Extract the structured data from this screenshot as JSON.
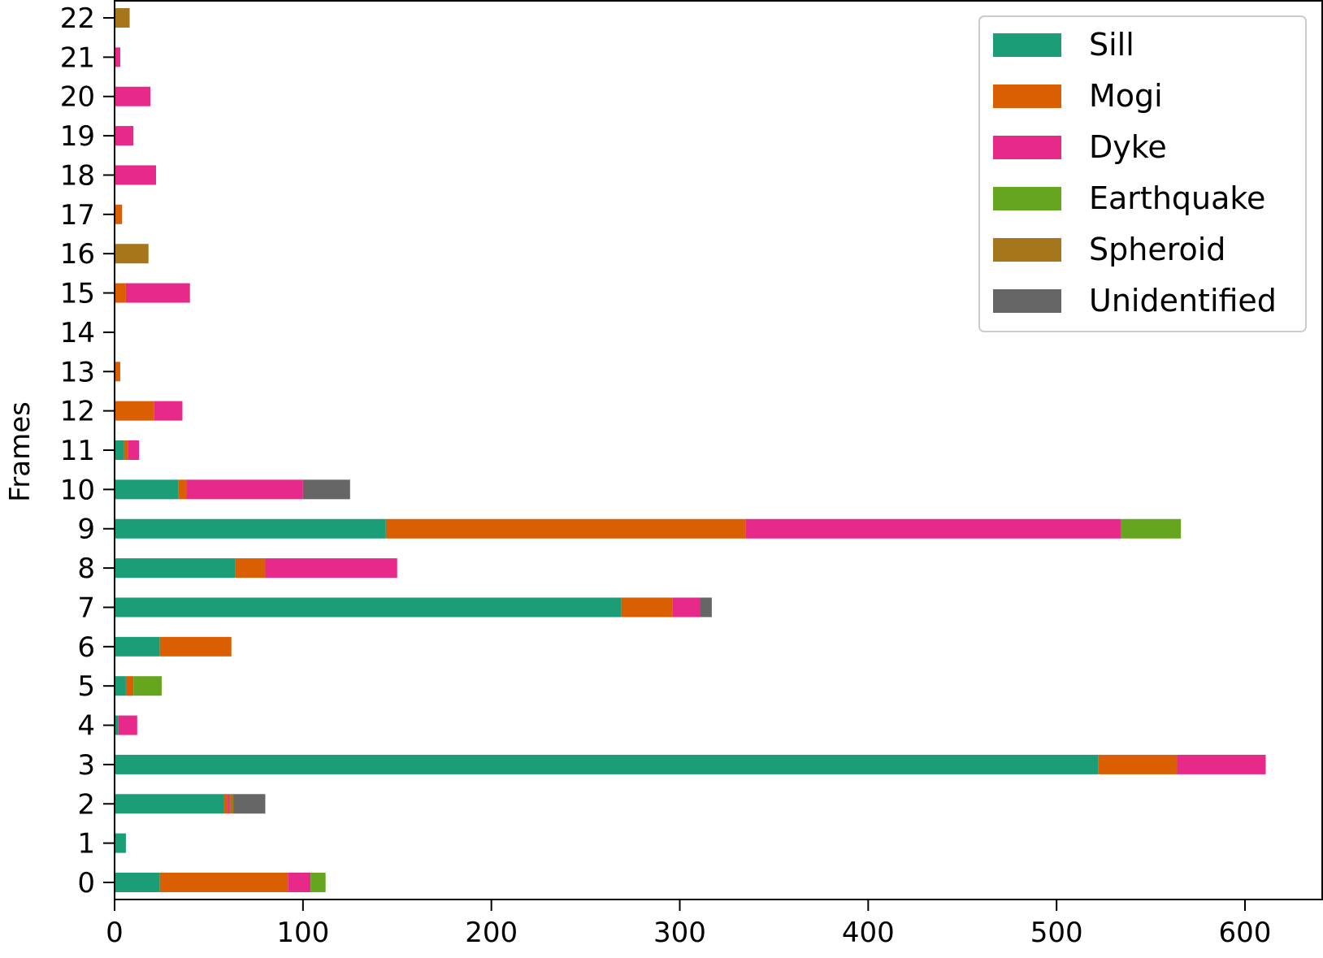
{
  "chart_data": {
    "type": "bar",
    "orientation": "horizontal",
    "stacked": true,
    "title": "",
    "xlabel": "",
    "ylabel": "Frames",
    "xlim": [
      0,
      640
    ],
    "x_ticks": [
      0,
      100,
      200,
      300,
      400,
      500,
      600
    ],
    "categories": [
      "0",
      "1",
      "2",
      "3",
      "4",
      "5",
      "6",
      "7",
      "8",
      "9",
      "10",
      "11",
      "12",
      "13",
      "14",
      "15",
      "16",
      "17",
      "18",
      "19",
      "20",
      "21",
      "22"
    ],
    "legend_position": "top-right",
    "grid": false,
    "series": [
      {
        "name": "Sill",
        "color": "#1b9e77",
        "values": [
          24,
          6,
          58,
          522,
          2,
          6,
          24,
          269,
          64,
          144,
          34,
          5,
          0,
          0,
          0,
          0,
          0,
          0,
          0,
          0,
          0,
          0,
          0
        ]
      },
      {
        "name": "Mogi",
        "color": "#d95f02",
        "values": [
          68,
          0,
          2,
          42,
          0,
          4,
          38,
          27,
          16,
          191,
          4,
          2,
          21,
          3,
          0,
          6,
          0,
          4,
          0,
          0,
          0,
          0,
          0
        ]
      },
      {
        "name": "Dyke",
        "color": "#e7298a",
        "values": [
          12,
          0,
          1,
          47,
          10,
          0,
          0,
          15,
          70,
          199,
          62,
          6,
          15,
          0,
          0,
          34,
          0,
          0,
          22,
          10,
          19,
          3,
          0
        ]
      },
      {
        "name": "Earthquake",
        "color": "#66a61e",
        "values": [
          8,
          0,
          0,
          0,
          0,
          15,
          0,
          0,
          0,
          32,
          0,
          0,
          0,
          0,
          0,
          0,
          0,
          0,
          0,
          0,
          0,
          0,
          0
        ]
      },
      {
        "name": "Spheroid",
        "color": "#a6761d",
        "values": [
          0,
          0,
          2,
          0,
          0,
          0,
          0,
          0,
          0,
          0,
          0,
          0,
          0,
          0,
          0,
          0,
          18,
          0,
          0,
          0,
          0,
          0,
          8
        ]
      },
      {
        "name": "Unidentified",
        "color": "#666666",
        "values": [
          0,
          0,
          17,
          0,
          0,
          0,
          0,
          6,
          0,
          0,
          25,
          0,
          0,
          0,
          0,
          0,
          0,
          0,
          0,
          0,
          0,
          0,
          0
        ]
      }
    ]
  }
}
